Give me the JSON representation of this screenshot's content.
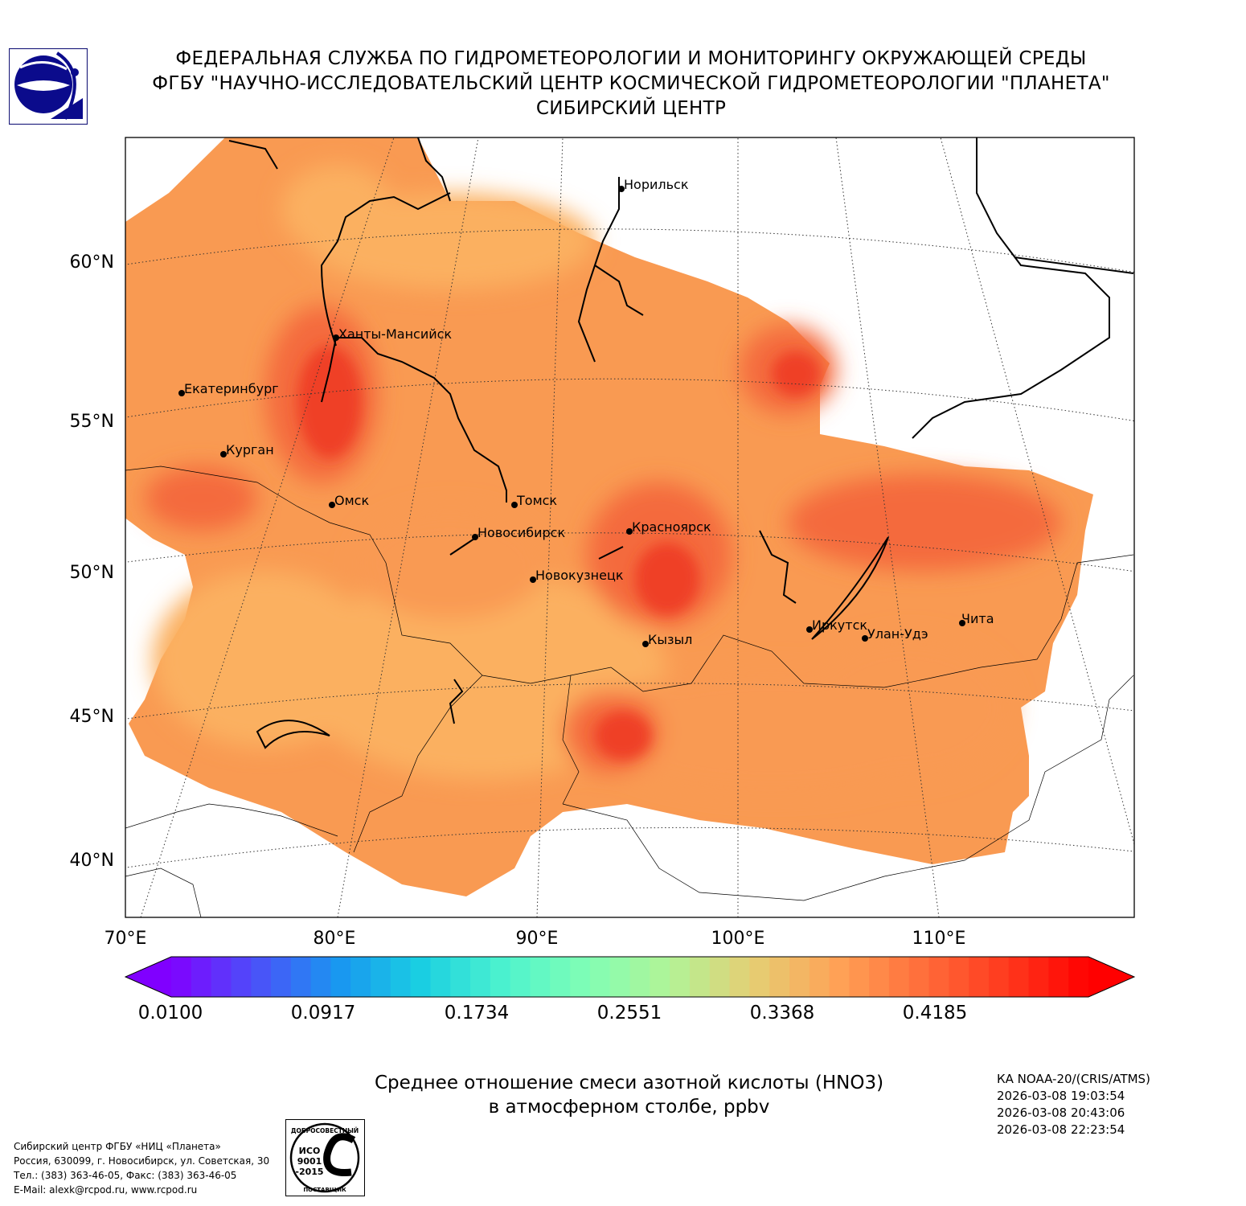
{
  "header": {
    "line1": "ФЕДЕРАЛЬНАЯ СЛУЖБА ПО ГИДРОМЕТЕОРОЛОГИИ И МОНИТОРИНГУ ОКРУЖАЮЩЕЙ СРЕДЫ",
    "line2": "ФГБУ \"НАУЧНО-ИССЛЕДОВАТЕЛЬСКИЙ ЦЕНТР КОСМИЧЕСКОЙ ГИДРОМЕТЕОРОЛОГИИ \"ПЛАНЕТА\"",
    "line3": "СИБИРСКИЙ ЦЕНТР"
  },
  "map": {
    "lat_labels": [
      "60°N",
      "55°N",
      "50°N",
      "45°N",
      "40°N"
    ],
    "lon_labels": [
      "70°E",
      "80°E",
      "90°E",
      "100°E",
      "110°E"
    ],
    "cities": [
      "Норильск",
      "Ханты-Мансийск",
      "Екатеринбург",
      "Курган",
      "Омск",
      "Томск",
      "Новосибирск",
      "Красноярск",
      "Новокузнецк",
      "Иркутск",
      "Улан-Удэ",
      "Чита",
      "Кызыл"
    ]
  },
  "colorbar": {
    "labels": [
      "0.0100",
      "0.0917",
      "0.1734",
      "0.2551",
      "0.3368",
      "0.4185"
    ],
    "colors": [
      "#8000ff",
      "#4c50f9",
      "#1996f0",
      "#1acfe2",
      "#4df3ce",
      "#81feb4",
      "#b3f396",
      "#e6cd73",
      "#ffa256",
      "#ff6e3b",
      "#ff3a1e",
      "#ff0000"
    ],
    "field_colors": {
      "low": "#fbb060",
      "mid": "#f99a52",
      "high": "#f46b3c",
      "peak": "#ef4025"
    }
  },
  "caption": {
    "line1": "Среднее отношение смеси азотной кислоты (HNO3)",
    "line2": "в атмосферном столбе, ppbv"
  },
  "satellite": {
    "name": "КА NOAA-20/(CRIS/ATMS)",
    "times": [
      "2026-03-08 19:03:54",
      "2026-03-08 20:43:06",
      "2026-03-08 22:23:54"
    ]
  },
  "footer": {
    "line1": "Сибирский центр ФГБУ «НИЦ «Планета»",
    "line2": "Россия, 630099, г. Новосибирск, ул. Советская, 30",
    "line3": "Тел.: (383) 363-46-05, Факс: (383) 363-46-05",
    "line4": "E-Mail: alexk@rcpod.ru, www.rcpod.ru"
  },
  "iso_badge": {
    "top": "ДОБРОСОВЕСТНЫЙ",
    "mid1": "ИСО",
    "mid2": "9001",
    "mid3": "-2015",
    "bottom": "ПОСТАВЩИК"
  }
}
